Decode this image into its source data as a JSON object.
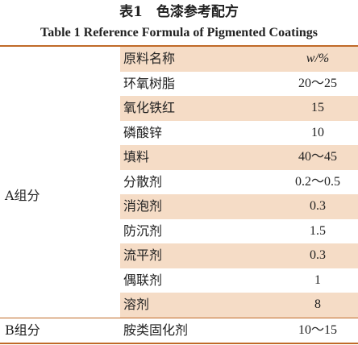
{
  "title_cn": "表1　色漆参考配方",
  "title_en": "Table 1    Reference Formula of Pigmented Coatings",
  "header": {
    "col_material": "原料名称",
    "col_wt": "w/%"
  },
  "group_a_label": "A组分",
  "group_b_label": "B组分",
  "rows_a": [
    {
      "name": "环氧树脂",
      "value": "20～25"
    },
    {
      "name": "氧化铁红",
      "value": "15"
    },
    {
      "name": "磷酸锌",
      "value": "10"
    },
    {
      "name": "填料",
      "value": "40～45"
    },
    {
      "name": "分散剂",
      "value": "0.2～0.5"
    },
    {
      "name": "消泡剂",
      "value": "0.3"
    },
    {
      "name": "防沉剂",
      "value": "1.5"
    },
    {
      "name": "流平剂",
      "value": "0.3"
    },
    {
      "name": "偶联剂",
      "value": "1"
    },
    {
      "name": "溶剂",
      "value": "8"
    }
  ],
  "rows_b": [
    {
      "name": "胺类固化剂",
      "value": "10～15"
    }
  ],
  "colors": {
    "accent": "#c06a28",
    "shade": "#f5dcc6"
  }
}
